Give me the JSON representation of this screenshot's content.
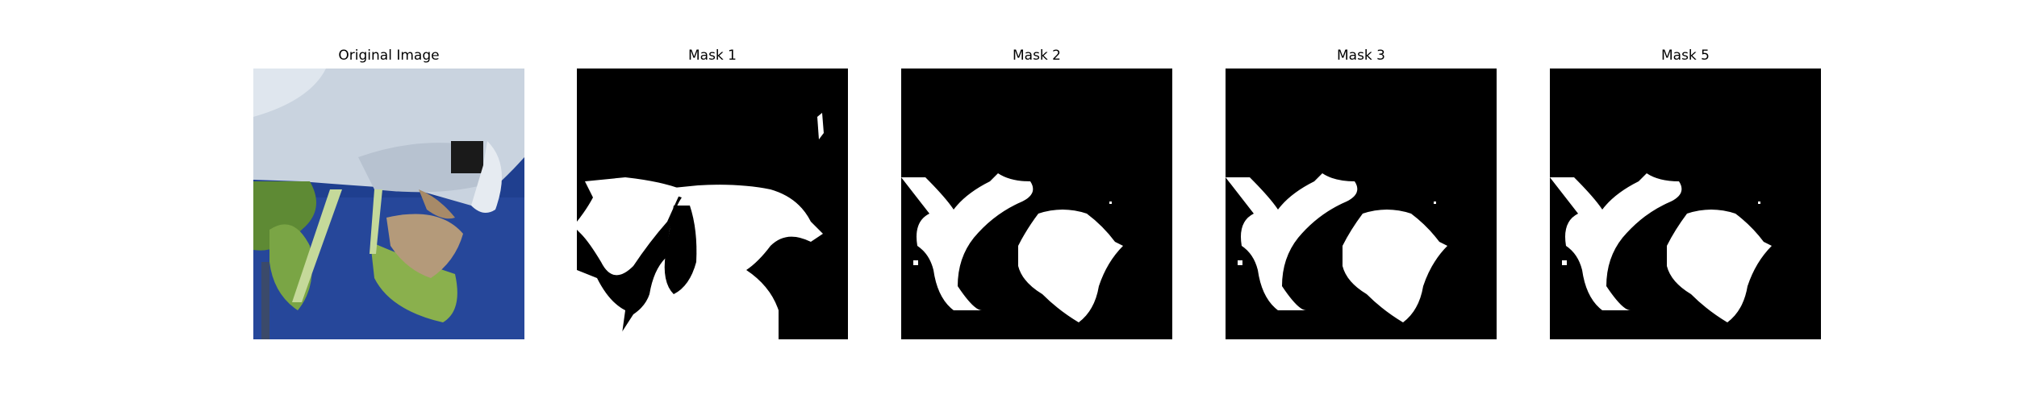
{
  "figure": {
    "panels": [
      {
        "title": "Original Image"
      },
      {
        "title": "Mask 1"
      },
      {
        "title": "Mask 2"
      },
      {
        "title": "Mask 3"
      },
      {
        "title": "Mask 5"
      }
    ]
  },
  "colors": {
    "background": "#ffffff",
    "mask_background": "#000000",
    "mask_foreground": "#ffffff",
    "photo_sky": "#1f3f8f",
    "photo_pipe": "#c9d3df",
    "photo_leaf": "#6f9a3c",
    "photo_dry_leaf": "#b49a7a"
  }
}
